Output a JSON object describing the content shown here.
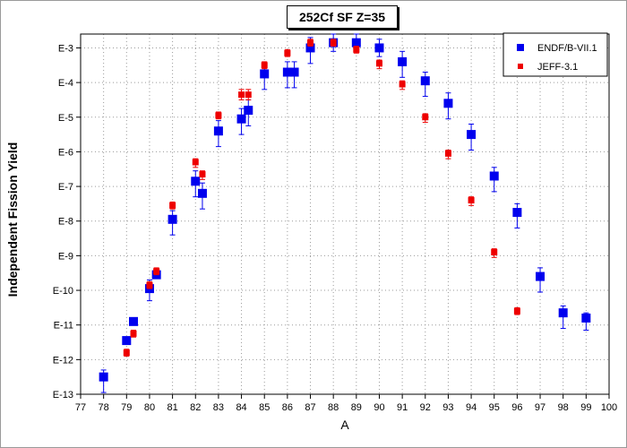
{
  "chart_data": {
    "type": "scatter",
    "title": "252Cf SF Z=35",
    "xlabel": "A",
    "ylabel": "Independent Fission Yield",
    "xlim": [
      77,
      100
    ],
    "ylim_exponent": [
      -13,
      -2.6
    ],
    "yscale": "log",
    "xticks": [
      "77",
      "78",
      "79",
      "80",
      "81",
      "82",
      "83",
      "84",
      "85",
      "86",
      "87",
      "88",
      "89",
      "90",
      "91",
      "92",
      "93",
      "94",
      "95",
      "96",
      "97",
      "98",
      "99",
      "100"
    ],
    "yticks": [
      {
        "label": "E-3",
        "exp": -3
      },
      {
        "label": "E-4",
        "exp": -4
      },
      {
        "label": "E-5",
        "exp": -5
      },
      {
        "label": "E-6",
        "exp": -6
      },
      {
        "label": "E-7",
        "exp": -7
      },
      {
        "label": "E-8",
        "exp": -8
      },
      {
        "label": "E-9",
        "exp": -9
      },
      {
        "label": "E-10",
        "exp": -10
      },
      {
        "label": "E-11",
        "exp": -11
      },
      {
        "label": "E-12",
        "exp": -12
      },
      {
        "label": "E-13",
        "exp": -13
      }
    ],
    "grid": true,
    "legend_position": "top-right",
    "series": [
      {
        "name": "ENDF/B-VII.1",
        "color": "#0000ee",
        "marker": "square-large",
        "points": [
          {
            "x": 78.0,
            "logy": -12.5,
            "err_lo": 0.45,
            "err_hi": 0.2
          },
          {
            "x": 79.0,
            "logy": -11.45,
            "err_lo": 0.1,
            "err_hi": 0.1
          },
          {
            "x": 79.3,
            "logy": -10.9,
            "err_lo": 0.1,
            "err_hi": 0.1
          },
          {
            "x": 80.0,
            "logy": -9.95,
            "err_lo": 0.35,
            "err_hi": 0.25
          },
          {
            "x": 80.3,
            "logy": -9.55,
            "err_lo": 0.1,
            "err_hi": 0.1
          },
          {
            "x": 81.0,
            "logy": -7.95,
            "err_lo": 0.45,
            "err_hi": 0.25
          },
          {
            "x": 82.0,
            "logy": -6.85,
            "err_lo": 0.45,
            "err_hi": 0.3
          },
          {
            "x": 82.3,
            "logy": -7.2,
            "err_lo": 0.45,
            "err_hi": 0.3
          },
          {
            "x": 83.0,
            "logy": -5.4,
            "err_lo": 0.45,
            "err_hi": 0.3
          },
          {
            "x": 84.0,
            "logy": -5.05,
            "err_lo": 0.45,
            "err_hi": 0.3
          },
          {
            "x": 84.3,
            "logy": -4.8,
            "err_lo": 0.45,
            "err_hi": 0.3
          },
          {
            "x": 85.0,
            "logy": -3.75,
            "err_lo": 0.45,
            "err_hi": 0.3
          },
          {
            "x": 86.0,
            "logy": -3.7,
            "err_lo": 0.45,
            "err_hi": 0.3
          },
          {
            "x": 86.3,
            "logy": -3.7,
            "err_lo": 0.45,
            "err_hi": 0.3
          },
          {
            "x": 87.0,
            "logy": -3.0,
            "err_lo": 0.45,
            "err_hi": 0.3
          },
          {
            "x": 88.0,
            "logy": -2.85,
            "err_lo": 0.25,
            "err_hi": 0.25
          },
          {
            "x": 89.0,
            "logy": -2.85,
            "err_lo": 0.25,
            "err_hi": 0.25
          },
          {
            "x": 90.0,
            "logy": -3.0,
            "err_lo": 0.25,
            "err_hi": 0.25
          },
          {
            "x": 91.0,
            "logy": -3.4,
            "err_lo": 0.45,
            "err_hi": 0.3
          },
          {
            "x": 92.0,
            "logy": -3.95,
            "err_lo": 0.45,
            "err_hi": 0.25
          },
          {
            "x": 93.0,
            "logy": -4.6,
            "err_lo": 0.45,
            "err_hi": 0.3
          },
          {
            "x": 94.0,
            "logy": -5.5,
            "err_lo": 0.45,
            "err_hi": 0.3
          },
          {
            "x": 95.0,
            "logy": -6.7,
            "err_lo": 0.45,
            "err_hi": 0.25
          },
          {
            "x": 96.0,
            "logy": -7.75,
            "err_lo": 0.45,
            "err_hi": 0.25
          },
          {
            "x": 97.0,
            "logy": -9.6,
            "err_lo": 0.45,
            "err_hi": 0.25
          },
          {
            "x": 98.0,
            "logy": -10.65,
            "err_lo": 0.45,
            "err_hi": 0.2
          },
          {
            "x": 99.0,
            "logy": -10.8,
            "err_lo": 0.35,
            "err_hi": 0.15
          }
        ]
      },
      {
        "name": "JEFF-3.1",
        "color": "#ee0000",
        "marker": "square-small",
        "points": [
          {
            "x": 79.0,
            "logy": -11.8,
            "err_lo": 0.1,
            "err_hi": 0.1
          },
          {
            "x": 79.3,
            "logy": -11.25,
            "err_lo": 0.1,
            "err_hi": 0.1
          },
          {
            "x": 80.0,
            "logy": -9.85,
            "err_lo": 0.1,
            "err_hi": 0.1
          },
          {
            "x": 80.3,
            "logy": -9.45,
            "err_lo": 0.1,
            "err_hi": 0.1
          },
          {
            "x": 81.0,
            "logy": -7.55,
            "err_lo": 0.1,
            "err_hi": 0.1
          },
          {
            "x": 82.0,
            "logy": -6.3,
            "err_lo": 0.15,
            "err_hi": 0.1
          },
          {
            "x": 82.3,
            "logy": -6.65,
            "err_lo": 0.15,
            "err_hi": 0.1
          },
          {
            "x": 83.0,
            "logy": -4.95,
            "err_lo": 0.1,
            "err_hi": 0.1
          },
          {
            "x": 84.0,
            "logy": -4.35,
            "err_lo": 0.15,
            "err_hi": 0.15
          },
          {
            "x": 84.3,
            "logy": -4.35,
            "err_lo": 0.15,
            "err_hi": 0.15
          },
          {
            "x": 85.0,
            "logy": -3.5,
            "err_lo": 0.1,
            "err_hi": 0.1
          },
          {
            "x": 86.0,
            "logy": -3.15,
            "err_lo": 0.1,
            "err_hi": 0.1
          },
          {
            "x": 87.0,
            "logy": -2.85,
            "err_lo": 0.1,
            "err_hi": 0.1
          },
          {
            "x": 88.0,
            "logy": -2.85,
            "err_lo": 0.1,
            "err_hi": 0.1
          },
          {
            "x": 89.0,
            "logy": -3.05,
            "err_lo": 0.1,
            "err_hi": 0.1
          },
          {
            "x": 90.0,
            "logy": -3.45,
            "err_lo": 0.15,
            "err_hi": 0.1
          },
          {
            "x": 91.0,
            "logy": -4.05,
            "err_lo": 0.15,
            "err_hi": 0.1
          },
          {
            "x": 92.0,
            "logy": -5.0,
            "err_lo": 0.15,
            "err_hi": 0.1
          },
          {
            "x": 93.0,
            "logy": -6.05,
            "err_lo": 0.15,
            "err_hi": 0.1
          },
          {
            "x": 94.0,
            "logy": -7.4,
            "err_lo": 0.15,
            "err_hi": 0.1
          },
          {
            "x": 95.0,
            "logy": -8.9,
            "err_lo": 0.15,
            "err_hi": 0.1
          },
          {
            "x": 96.0,
            "logy": -10.6,
            "err_lo": 0.1,
            "err_hi": 0.1
          }
        ]
      }
    ]
  }
}
